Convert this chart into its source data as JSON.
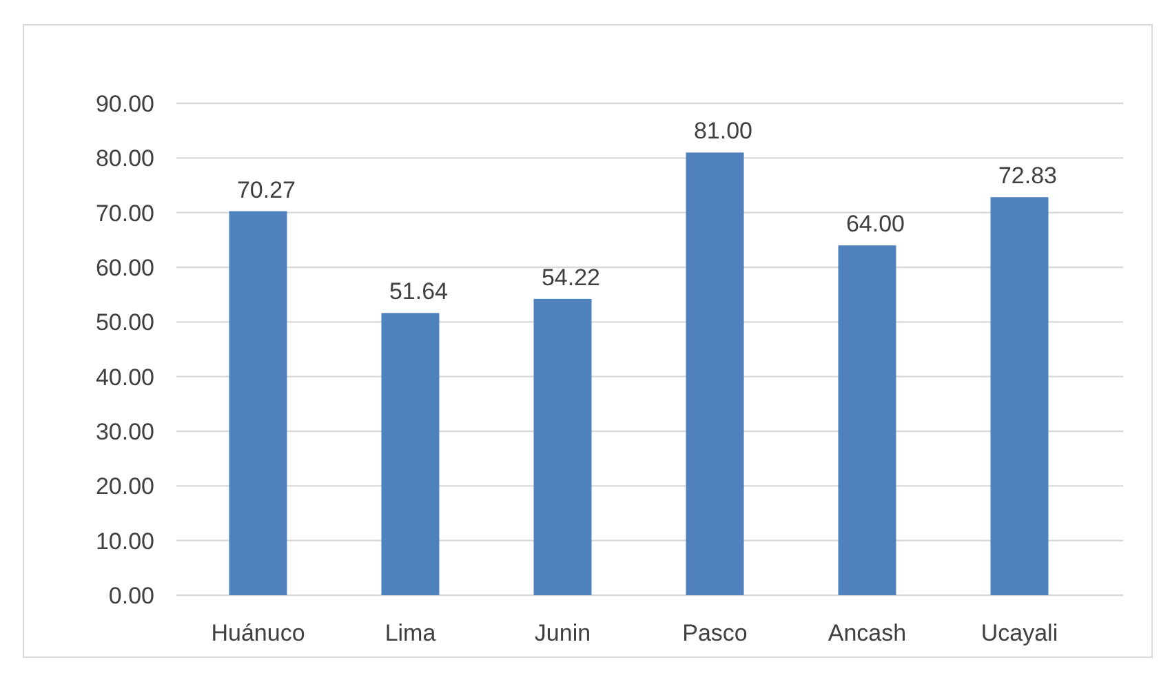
{
  "chart_data": {
    "type": "bar",
    "categories": [
      "Huánuco",
      "Lima",
      "Junin",
      "Pasco",
      "Ancash",
      "Ucayali"
    ],
    "values": [
      70.27,
      51.64,
      54.22,
      81.0,
      64.0,
      72.83
    ],
    "color": "#4f81bd",
    "ylim": [
      0,
      90
    ],
    "yticks": [
      {
        "value": 0,
        "label": "0.00"
      },
      {
        "value": 10,
        "label": "10.00"
      },
      {
        "value": 20,
        "label": "20.00"
      },
      {
        "value": 30,
        "label": "30.00"
      },
      {
        "value": 40,
        "label": "40.00"
      },
      {
        "value": 50,
        "label": "50.00"
      },
      {
        "value": 60,
        "label": "60.00"
      },
      {
        "value": 70,
        "label": "70.00"
      },
      {
        "value": 80,
        "label": "80.00"
      },
      {
        "value": 90,
        "label": "90.00"
      }
    ],
    "grid": true,
    "value_labels": [
      "70.27",
      "51.64",
      "54.22",
      "81.00",
      "64.00",
      "72.83"
    ]
  }
}
